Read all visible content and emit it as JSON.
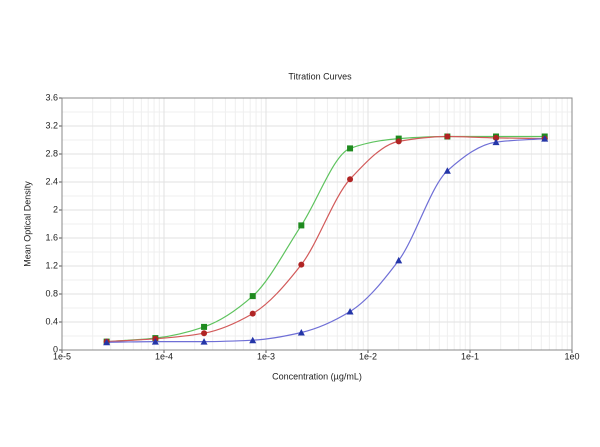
{
  "chart_data": {
    "type": "scatter",
    "title": "Titration Curves",
    "x_label": "Concentration (µg/mL)",
    "y_label": "Mean Optical Density",
    "x_scale": "log",
    "grid": true,
    "x": [
      2.74e-05,
      8.23e-05,
      0.000247,
      0.000741,
      0.00222,
      0.00667,
      0.02,
      0.06,
      0.18,
      0.54
    ],
    "series": [
      {
        "name": "Green",
        "color": "#1f8a1f",
        "line_color": "#5ec35e",
        "marker": "square",
        "values": [
          0.12,
          0.17,
          0.33,
          0.77,
          1.78,
          2.88,
          3.02,
          3.05,
          3.05,
          3.05
        ]
      },
      {
        "name": "Red",
        "color": "#b02424",
        "line_color": "#d25a5a",
        "marker": "circle",
        "values": [
          0.12,
          0.16,
          0.24,
          0.52,
          1.22,
          2.44,
          2.98,
          3.05,
          3.03,
          3.02
        ]
      },
      {
        "name": "Blue",
        "color": "#2436a8",
        "line_color": "#6f6fd6",
        "marker": "triangle",
        "values": [
          0.11,
          0.12,
          0.12,
          0.14,
          0.25,
          0.55,
          1.28,
          2.56,
          2.97,
          3.02
        ]
      }
    ],
    "xlim": [
      1e-05,
      1
    ],
    "xticks": [
      {
        "value": 1e-05,
        "label": "1e-5"
      },
      {
        "value": 0.0001,
        "label": "1e-4"
      },
      {
        "value": 0.001,
        "label": "1e-3"
      },
      {
        "value": 0.01,
        "label": "1e-2"
      },
      {
        "value": 0.1,
        "label": "1e-1"
      },
      {
        "value": 1,
        "label": "1e0"
      }
    ],
    "ylim": [
      0,
      3.6
    ],
    "yticks": [
      0,
      0.4,
      0.8,
      1.2,
      1.6,
      2,
      2.4,
      2.8,
      3.2,
      3.6
    ]
  }
}
